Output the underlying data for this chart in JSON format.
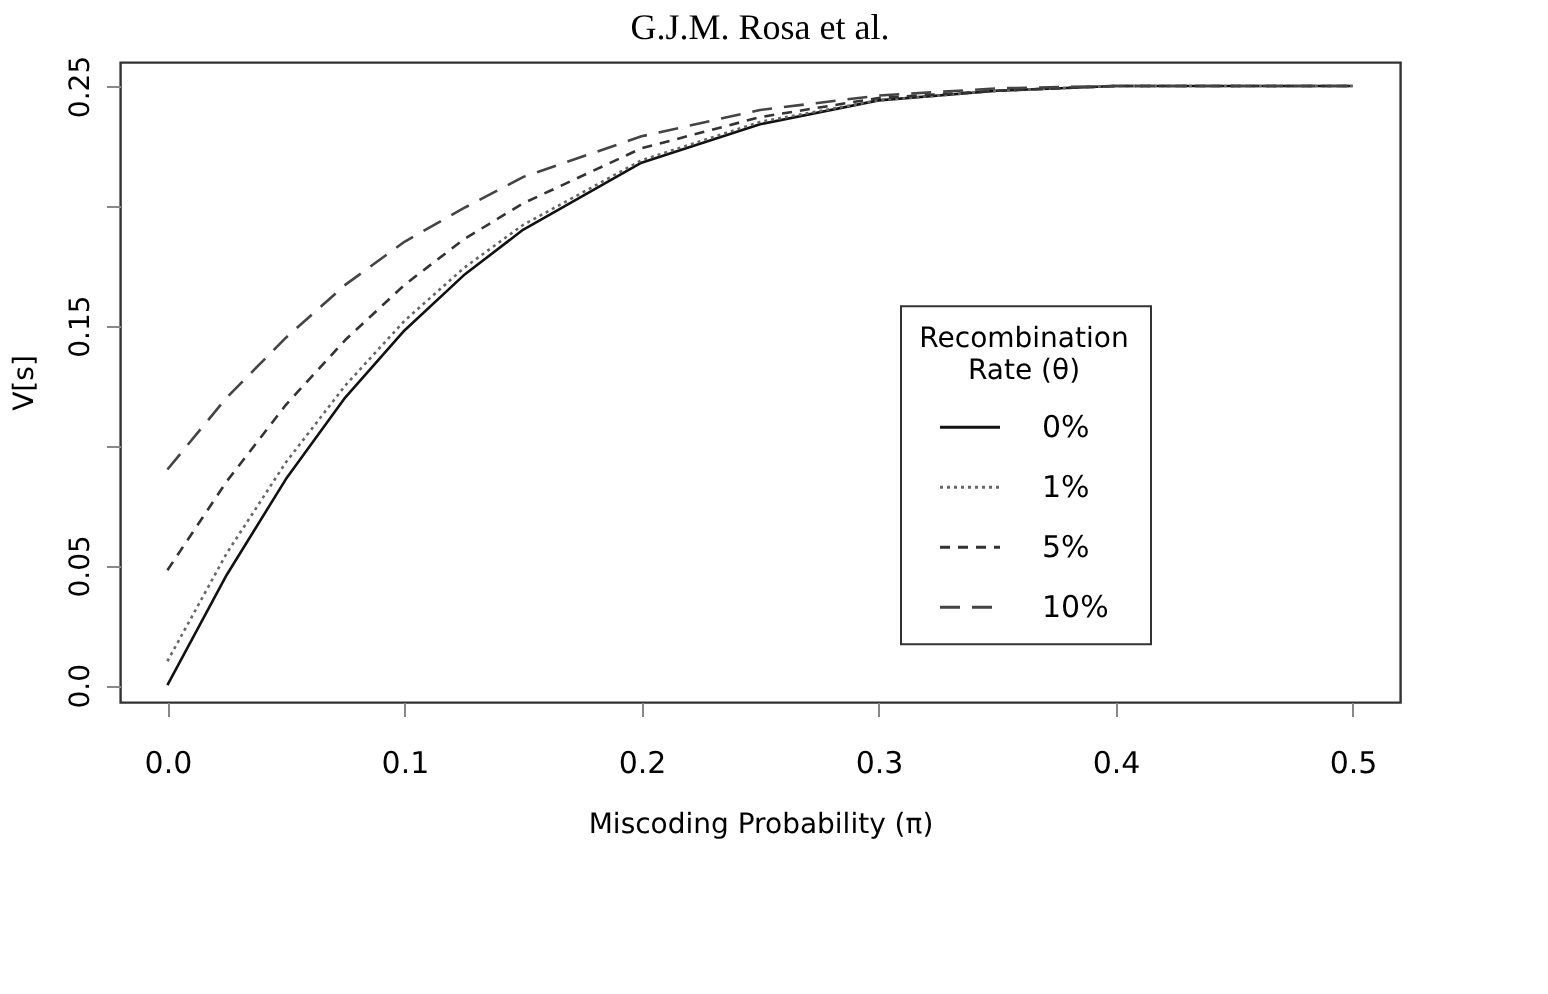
{
  "chart_data": {
    "type": "line",
    "title": "G.J.M. Rosa et al.",
    "xlabel": "Miscoding Probability (π)",
    "ylabel": "V[s]",
    "legend_title": "Recombination\nRate (θ)",
    "x": [
      0,
      0.025,
      0.05,
      0.075,
      0.1,
      0.125,
      0.15,
      0.2,
      0.25,
      0.3,
      0.35,
      0.4,
      0.45,
      0.5
    ],
    "series": [
      {
        "name": "0%",
        "color": "#111111",
        "line_style": "solid",
        "values": [
          0,
          0.046,
          0.086,
          0.12,
          0.148,
          0.171,
          0.19,
          0.218,
          0.234,
          0.244,
          0.248,
          0.25,
          0.25,
          0.25
        ]
      },
      {
        "name": "1%",
        "color": "#666666",
        "line_style": "dotted",
        "values": [
          0.01,
          0.055,
          0.093,
          0.125,
          0.152,
          0.174,
          0.192,
          0.219,
          0.235,
          0.244,
          0.248,
          0.25,
          0.25,
          0.25
        ]
      },
      {
        "name": "5%",
        "color": "#333333",
        "line_style": "dashed",
        "values": [
          0.048,
          0.085,
          0.117,
          0.144,
          0.167,
          0.186,
          0.201,
          0.224,
          0.237,
          0.245,
          0.248,
          0.25,
          0.25,
          0.25
        ]
      },
      {
        "name": "10%",
        "color": "#444444",
        "line_style": "dashed",
        "values": [
          0.09,
          0.12,
          0.145,
          0.167,
          0.185,
          0.199,
          0.212,
          0.229,
          0.24,
          0.246,
          0.249,
          0.25,
          0.25,
          0.25
        ]
      }
    ],
    "xlim": [
      -0.02,
      0.52
    ],
    "ylim": [
      -0.007,
      0.26
    ],
    "xticks": [
      {
        "value": 0,
        "label": "0.0"
      },
      0.1,
      0.2,
      0.3,
      0.4,
      0.5
    ],
    "yticks": [
      {
        "value": 0,
        "label": "0.0"
      },
      0.05,
      {
        "value": 0.1,
        "label": null
      },
      0.15,
      {
        "value": 0.2,
        "label": null
      },
      0.25
    ],
    "legend": "right",
    "grid": false,
    "marker": "none"
  }
}
